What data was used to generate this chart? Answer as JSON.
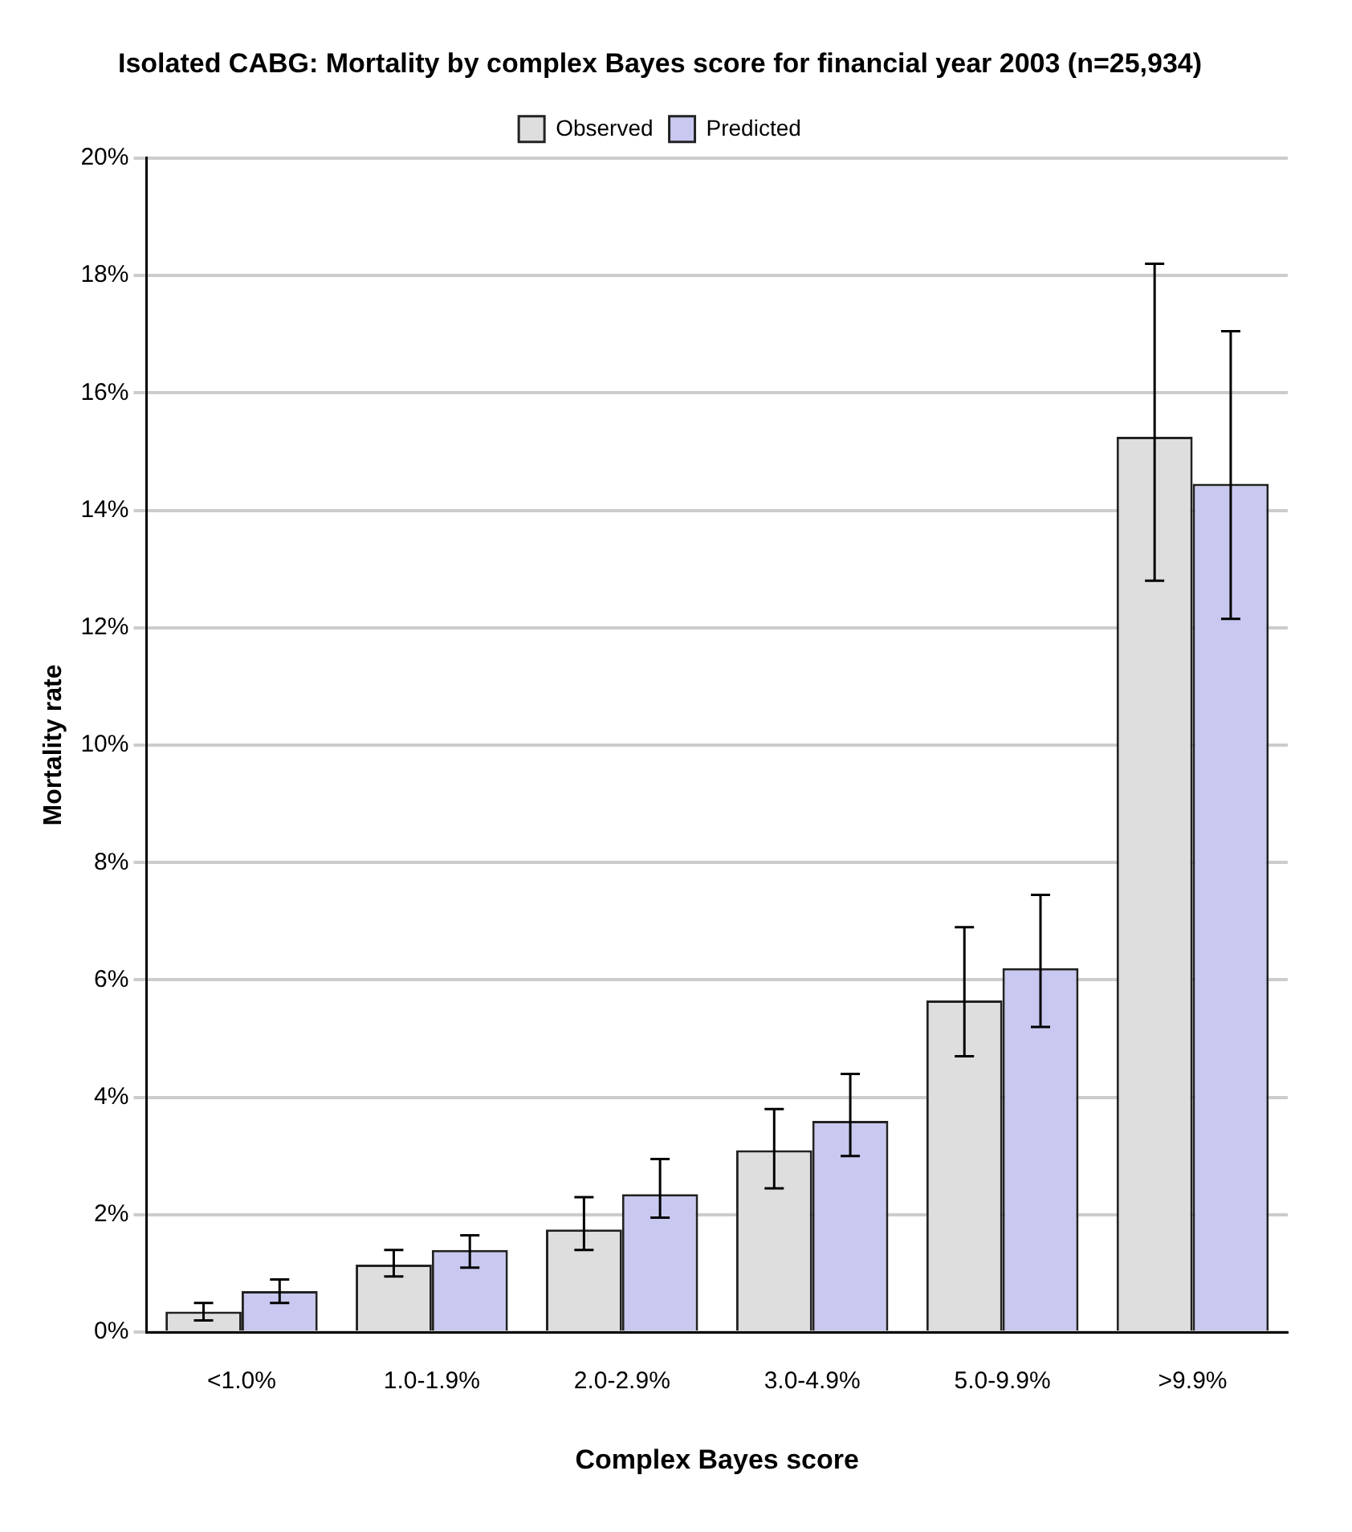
{
  "chart_data": {
    "type": "bar",
    "title": "Isolated CABG: Mortality by complex Bayes score for financial year 2003 (n=25,934)",
    "xlabel": "Complex Bayes score",
    "ylabel": "Mortality rate",
    "categories": [
      "<1.0%",
      "1.0-1.9%",
      "2.0-2.9%",
      "3.0-4.9%",
      "5.0-9.9%",
      ">9.9%"
    ],
    "series": [
      {
        "name": "Observed",
        "color": "#dedede",
        "values": [
          0.35,
          1.15,
          1.75,
          3.1,
          5.65,
          15.25
        ],
        "errors": [
          [
            0.2,
            0.5
          ],
          [
            0.95,
            1.4
          ],
          [
            1.4,
            2.3
          ],
          [
            2.45,
            3.8
          ],
          [
            4.7,
            6.9
          ],
          [
            12.8,
            18.2
          ]
        ]
      },
      {
        "name": "Predicted",
        "color": "#c8c8f0",
        "values": [
          0.7,
          1.4,
          2.35,
          3.6,
          6.2,
          14.45
        ],
        "errors": [
          [
            0.5,
            0.9
          ],
          [
            1.1,
            1.65
          ],
          [
            1.95,
            2.95
          ],
          [
            3.0,
            4.4
          ],
          [
            5.2,
            7.45
          ],
          [
            12.15,
            17.05
          ]
        ]
      }
    ],
    "ylim": [
      0,
      20
    ],
    "yticks": [
      {
        "value": 0,
        "label": "0%"
      },
      {
        "value": 2,
        "label": "2%"
      },
      {
        "value": 4,
        "label": "4%"
      },
      {
        "value": 6,
        "label": "6%"
      },
      {
        "value": 8,
        "label": "8%"
      },
      {
        "value": 10,
        "label": "10%"
      },
      {
        "value": 12,
        "label": "12%"
      },
      {
        "value": 14,
        "label": "14%"
      },
      {
        "value": 16,
        "label": "16%"
      },
      {
        "value": 18,
        "label": "18%"
      },
      {
        "value": 20,
        "label": "20%"
      }
    ],
    "grid": "y",
    "legend": "top"
  }
}
